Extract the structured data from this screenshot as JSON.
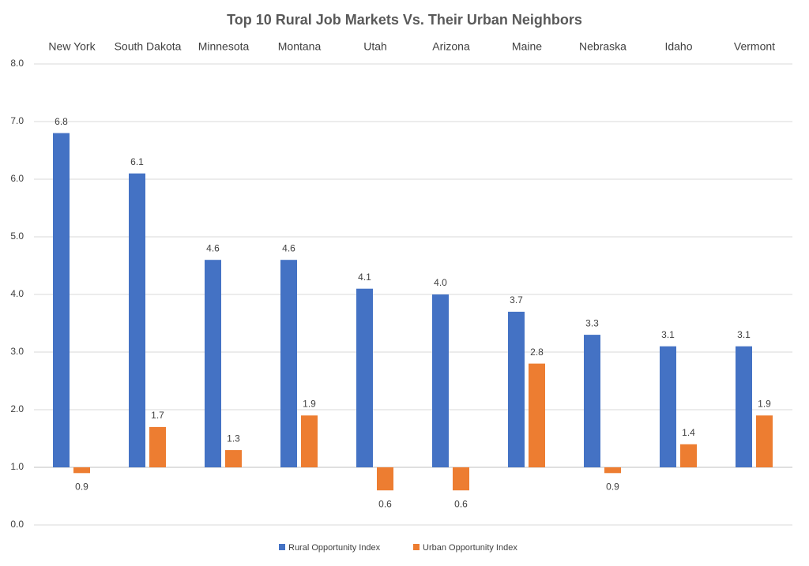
{
  "chart_data": {
    "type": "bar",
    "title": "Top 10 Rural Job Markets Vs. Their Urban Neighbors",
    "categories": [
      "New York",
      "South Dakota",
      "Minnesota",
      "Montana",
      "Utah",
      "Arizona",
      "Maine",
      "Nebraska",
      "Idaho",
      "Vermont"
    ],
    "series": [
      {
        "name": "Rural Opportunity Index",
        "color": "#4472c4",
        "values": [
          6.8,
          6.1,
          4.6,
          4.6,
          4.1,
          4.0,
          3.7,
          3.3,
          3.1,
          3.1
        ],
        "value_labels": [
          "6.8",
          "6.1",
          "4.6",
          "4.6",
          "4.1",
          "4.0",
          "3.7",
          "3.3",
          "3.1",
          "3.1"
        ]
      },
      {
        "name": "Urban Opportunity Index",
        "color": "#ed7d31",
        "values": [
          0.9,
          1.7,
          1.3,
          1.9,
          0.6,
          0.6,
          2.8,
          0.9,
          1.4,
          1.9
        ],
        "value_labels": [
          "0.9",
          "1.7",
          "1.3",
          "1.9",
          "0.6",
          "0.6",
          "2.8",
          "0.9",
          "1.4",
          "1.9"
        ]
      }
    ],
    "ylim": [
      0,
      8
    ],
    "yticks": [
      {
        "value": 0,
        "label": "0.0"
      },
      {
        "value": 1,
        "label": "1.0"
      },
      {
        "value": 2,
        "label": "2.0"
      },
      {
        "value": 3,
        "label": "3.0"
      },
      {
        "value": 4,
        "label": "4.0"
      },
      {
        "value": 5,
        "label": "5.0"
      },
      {
        "value": 6,
        "label": "6.0"
      },
      {
        "value": 7,
        "label": "7.0"
      },
      {
        "value": 8,
        "label": "8.0"
      }
    ],
    "x_axis_crosses_at": 1,
    "grid": true,
    "legend": "bottom"
  }
}
